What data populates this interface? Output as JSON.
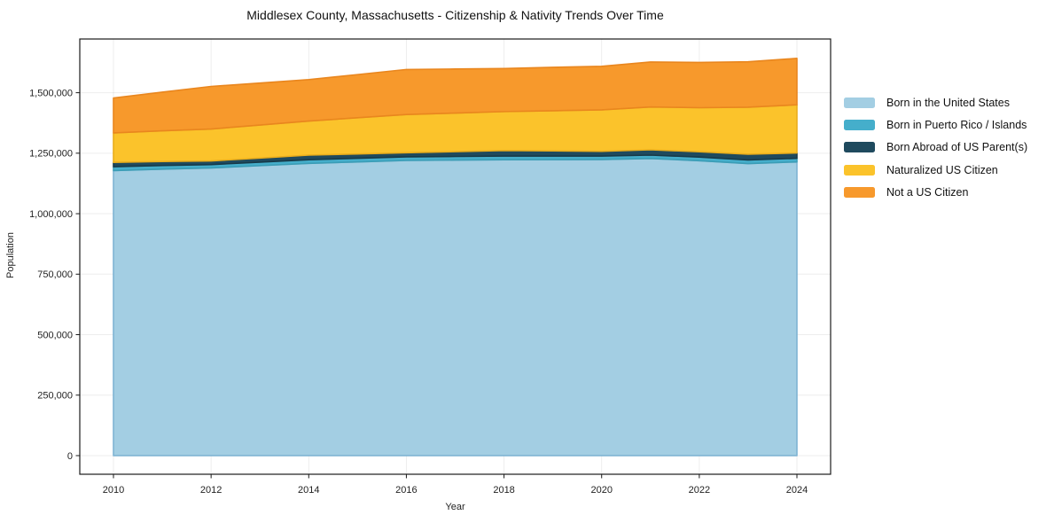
{
  "chart_data": {
    "type": "area",
    "stacked": true,
    "title": "Middlesex County, Massachusetts - Citizenship & Nativity Trends Over Time",
    "xlabel": "Year",
    "ylabel": "Population",
    "x": [
      2010,
      2011,
      2012,
      2013,
      2014,
      2015,
      2016,
      2017,
      2018,
      2019,
      2020,
      2021,
      2022,
      2023,
      2024
    ],
    "series": [
      {
        "name": "Born in the United States",
        "color": "#A3CEE3",
        "edge_color": "#7FB4D3",
        "values": [
          1178000,
          1184000,
          1189000,
          1198500,
          1208000,
          1214000,
          1220000,
          1221500,
          1223000,
          1223500,
          1224000,
          1228000,
          1219000,
          1207000,
          1214000
        ]
      },
      {
        "name": "Born in Puerto Rico / Islands",
        "color": "#45AECB",
        "edge_color": "#3B9DB6",
        "values": [
          16000,
          15000,
          14000,
          14500,
          15000,
          15000,
          15000,
          15000,
          15000,
          14500,
          14000,
          14000,
          15000,
          15000,
          15000
        ]
      },
      {
        "name": "Born Abroad of US Parent(s)",
        "color": "#1F4A5E",
        "edge_color": "#173A49",
        "values": [
          18000,
          16500,
          15000,
          17000,
          19000,
          18000,
          17000,
          20000,
          23000,
          21500,
          20000,
          22000,
          22000,
          24000,
          22000
        ]
      },
      {
        "name": "Naturalized US Citizen",
        "color": "#FBC32B",
        "edge_color": "#EAAE1C",
        "values": [
          122000,
          127000,
          132000,
          136500,
          141000,
          149500,
          158000,
          159500,
          161000,
          166000,
          171000,
          177000,
          182000,
          194000,
          199000
        ]
      },
      {
        "name": "Not a US Citizen",
        "color": "#F7992C",
        "edge_color": "#E9861E",
        "values": [
          144000,
          160000,
          176000,
          173500,
          171000,
          178500,
          186000,
          182000,
          178000,
          179500,
          180000,
          186000,
          187000,
          188000,
          192000
        ]
      }
    ],
    "xticks": {
      "values": [
        2010,
        2012,
        2014,
        2016,
        2018,
        2020,
        2022,
        2024
      ],
      "labels": [
        "2010",
        "2012",
        "2014",
        "2016",
        "2018",
        "2020",
        "2022",
        "2024"
      ]
    },
    "yticks": {
      "values": [
        0,
        250000,
        500000,
        750000,
        1000000,
        1250000,
        1500000
      ],
      "labels": [
        "0",
        "250,000",
        "500,000",
        "750,000",
        "1,000,000",
        "1,250,000",
        "1,500,000"
      ]
    },
    "xlim": [
      2009.31,
      2024.69
    ],
    "ylim": [
      -77000,
      1722000
    ],
    "grid": true,
    "legend_position": "right",
    "colors": {
      "axis": "#1a1a1a",
      "grid": "rgba(0,0,0,0.07)",
      "tick_label": "#222222",
      "title": "#111111",
      "background": "#ffffff"
    }
  }
}
